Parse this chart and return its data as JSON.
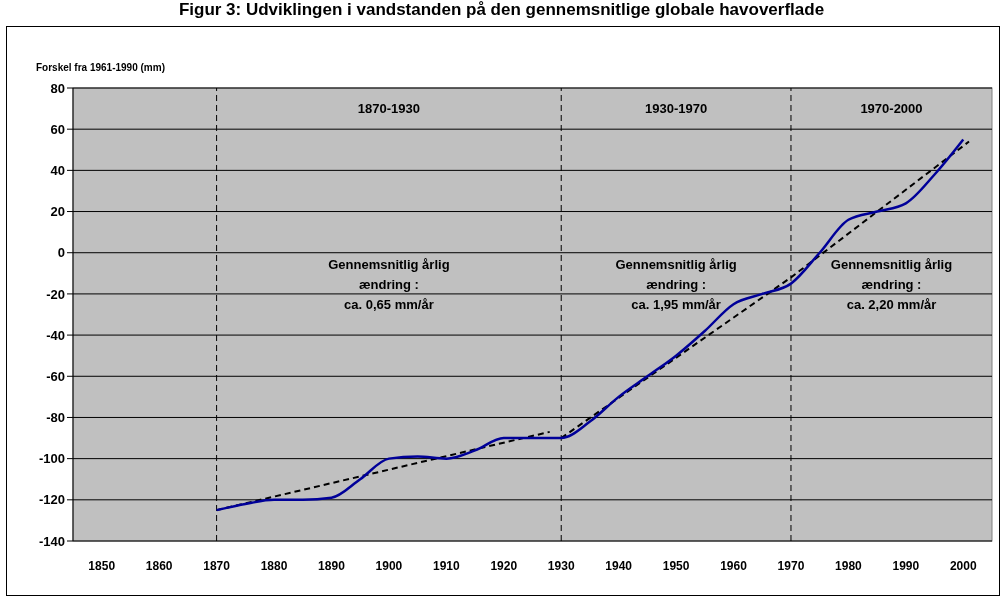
{
  "chart_data": {
    "type": "line",
    "title": "Figur 3: Udviklingen i vandstanden på den gennemsnitlige globale havoverflade",
    "ylabel": "Forskel fra 1961-1990 (mm)",
    "series": [
      {
        "color": "#000099",
        "line_style": "solid",
        "x": [
          1870,
          1875,
          1880,
          1885,
          1890,
          1895,
          1900,
          1905,
          1910,
          1915,
          1920,
          1925,
          1930,
          1935,
          1940,
          1945,
          1950,
          1955,
          1960,
          1965,
          1970,
          1975,
          1980,
          1985,
          1990,
          1995,
          2000
        ],
        "values": [
          -125,
          -122,
          -120,
          -120,
          -119,
          -110,
          -100,
          -99,
          -100,
          -96,
          -90,
          -90,
          -90,
          -82,
          -70,
          -60,
          -50,
          -38,
          -25,
          -20,
          -15,
          0,
          16,
          20,
          24,
          38,
          55
        ]
      },
      {
        "type": "line",
        "color": "#000000",
        "line_style": "dashed",
        "x": [
          1870,
          1928
        ],
        "values": [
          -125,
          -87
        ]
      },
      {
        "type": "line",
        "color": "#000000",
        "line_style": "dashed",
        "x": [
          1930,
          1970,
          2001
        ],
        "values": [
          -90,
          -12,
          54
        ]
      }
    ],
    "xlim": [
      1845,
      2005
    ],
    "xticks": [
      1850,
      1860,
      1870,
      1880,
      1890,
      1900,
      1910,
      1920,
      1930,
      1940,
      1950,
      1960,
      1970,
      1980,
      1990,
      2000
    ],
    "ylim": [
      -140,
      80
    ],
    "yticks": [
      -140,
      -120,
      -100,
      -80,
      -60,
      -40,
      -20,
      0,
      20,
      40,
      60,
      80
    ],
    "grid": "y",
    "legend": false,
    "marker": "none",
    "ref_lines": [
      {
        "axis": "x",
        "value": 1870,
        "line_style": "dashed",
        "color": "#000000"
      },
      {
        "axis": "x",
        "value": 1930,
        "line_style": "dashed",
        "color": "#000000"
      },
      {
        "axis": "x",
        "value": 1970,
        "line_style": "dashed",
        "color": "#000000"
      }
    ],
    "annotations": [
      "1870-1930",
      "1930-1970",
      "1970-2000",
      "Gennemsnitlig årlig\nændring :\nca. 0,65 mm/år",
      "Gennemsnitlig årlig\nændring :\nca. 1,95 mm/år",
      "Gennemsnitlig årlig\nændring :\nca. 2,20 mm/år"
    ]
  }
}
